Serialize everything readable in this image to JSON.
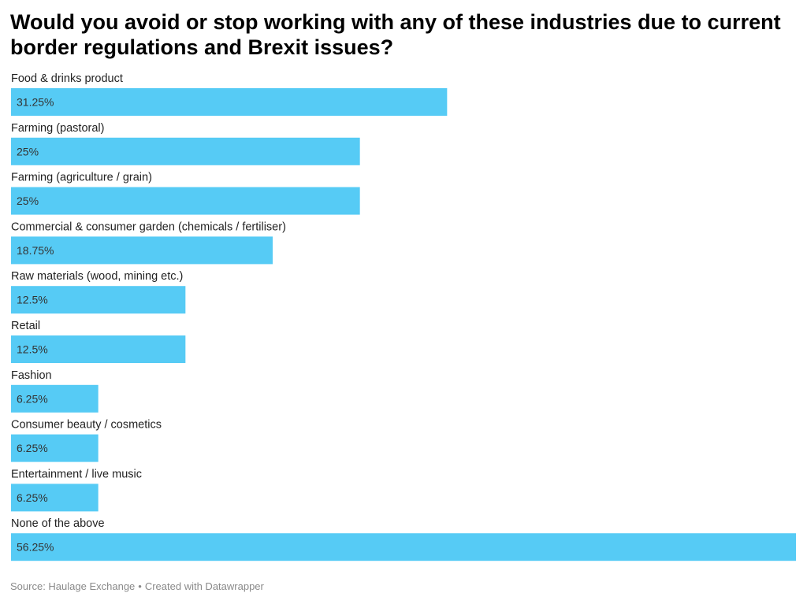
{
  "chart_data": {
    "type": "bar",
    "orientation": "horizontal",
    "title": "Would you avoid or stop working with any of these industries due to current border regulations and Brexit issues?",
    "categories": [
      "Food & drinks product",
      "Farming (pastoral)",
      "Farming (agriculture / grain)",
      "Commercial & consumer garden (chemicals / fertiliser)",
      "Raw materials (wood, mining etc.)",
      "Retail",
      "Fashion",
      "Consumer beauty / cosmetics",
      "Entertainment / live music",
      "None of the above"
    ],
    "values": [
      31.25,
      25,
      25,
      18.75,
      12.5,
      12.5,
      6.25,
      6.25,
      6.25,
      56.25
    ],
    "value_labels": [
      "31.25%",
      "25%",
      "25%",
      "18.75%",
      "12.5%",
      "12.5%",
      "6.25%",
      "6.25%",
      "6.25%",
      "56.25%"
    ],
    "unit": "%",
    "bar_color": "#56CBF5",
    "grid": false,
    "legend": "none"
  },
  "footer": {
    "source": "Source: Haulage Exchange",
    "separator": "•",
    "credit": "Created with Datawrapper"
  }
}
